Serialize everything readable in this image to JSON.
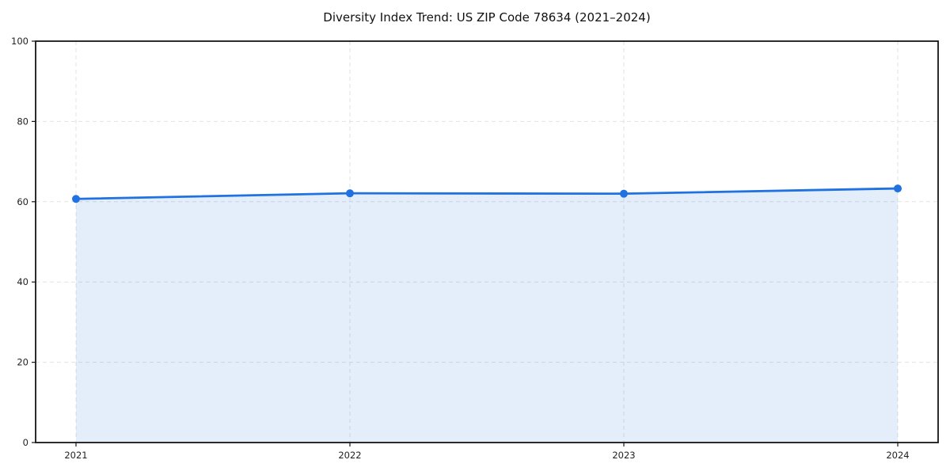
{
  "chart_data": {
    "type": "area",
    "title": "Diversity Index Trend: US ZIP Code 78634 (2021–2024)",
    "series_name": "Diversity Index",
    "x": [
      2021,
      2022,
      2023,
      2024
    ],
    "xtick_labels": [
      "2021",
      "2022",
      "2023",
      "2024"
    ],
    "values": [
      60.7,
      62.1,
      62.0,
      63.3
    ],
    "xlabel": "",
    "ylabel": "",
    "ylim": [
      0,
      100
    ],
    "yticks": [
      0,
      20,
      40,
      60,
      80,
      100
    ],
    "grid": "dashed",
    "legend": "none",
    "marker": "circle",
    "colors": {
      "line": "#1f72e0",
      "fill": "rgba(31,114,224,0.12)",
      "grid": "#e2e2e2",
      "spine": "#151515",
      "tick_label": "#222222",
      "title": "#111111",
      "background": "#ffffff"
    }
  }
}
